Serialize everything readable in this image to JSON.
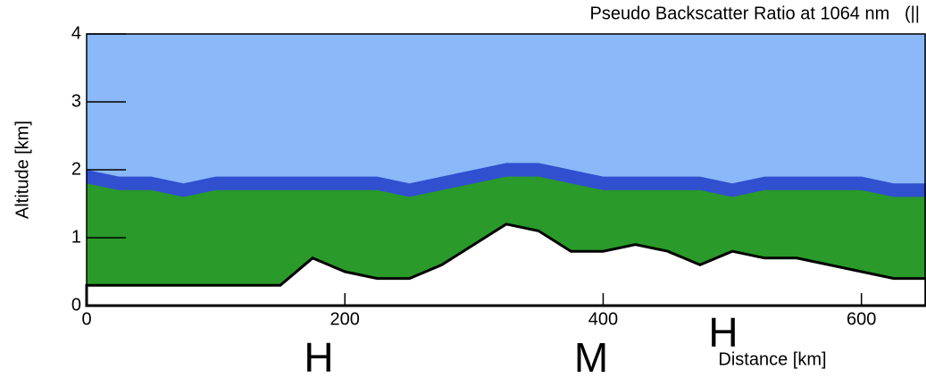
{
  "chart_data": {
    "type": "area",
    "title": "Pseudo Backscatter Ratio at 1064 nm   (||",
    "xlabel": "Distance [km]",
    "ylabel": "Altitude [km]",
    "annotations": [
      "H",
      "M",
      "H"
    ],
    "background_color": "#8ab8f8",
    "x": [
      0,
      25,
      50,
      75,
      100,
      125,
      150,
      175,
      200,
      225,
      250,
      275,
      300,
      325,
      350,
      375,
      400,
      425,
      450,
      475,
      500,
      525,
      550,
      575,
      600,
      625,
      650
    ],
    "series": [
      {
        "color": "#3050d0",
        "values": [
          2.0,
          1.9,
          1.9,
          1.8,
          1.9,
          1.9,
          1.9,
          1.9,
          1.9,
          1.9,
          1.8,
          1.9,
          2.0,
          2.1,
          2.1,
          2.0,
          1.9,
          1.9,
          1.9,
          1.9,
          1.8,
          1.9,
          1.9,
          1.9,
          1.9,
          1.8,
          1.8
        ]
      },
      {
        "color": "#2a9a2a",
        "values": [
          1.8,
          1.7,
          1.7,
          1.6,
          1.7,
          1.7,
          1.7,
          1.7,
          1.7,
          1.7,
          1.6,
          1.7,
          1.8,
          1.9,
          1.9,
          1.8,
          1.7,
          1.7,
          1.7,
          1.7,
          1.6,
          1.7,
          1.7,
          1.7,
          1.7,
          1.6,
          1.6
        ]
      },
      {
        "color": "#ffffff",
        "values": [
          0.3,
          0.3,
          0.3,
          0.3,
          0.3,
          0.3,
          0.3,
          0.7,
          0.5,
          0.4,
          0.4,
          0.6,
          0.9,
          1.2,
          1.1,
          0.8,
          0.8,
          0.9,
          0.8,
          0.6,
          0.8,
          0.7,
          0.7,
          0.6,
          0.5,
          0.4,
          0.4
        ]
      }
    ],
    "xlim": [
      0,
      650
    ],
    "xticks": [
      0,
      200,
      400,
      600
    ],
    "ylim": [
      0,
      4
    ],
    "yticks": [
      0,
      1,
      2,
      3,
      4
    ]
  }
}
